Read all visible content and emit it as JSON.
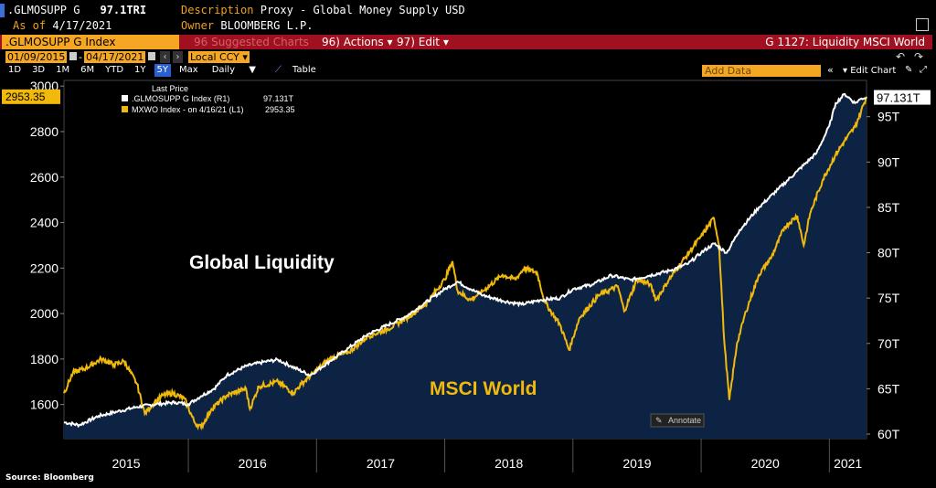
{
  "header": {
    "ticker": ".GLMOSUPP G",
    "last_value": "97.1TRI",
    "as_of_label": "As of",
    "as_of_date": "4/17/2021",
    "description_label": "Description",
    "description": "Proxy - Global Money Supply USD",
    "owner_label": "Owner",
    "owner": "BLOOMBERG L.P."
  },
  "toolbar": {
    "index_name": ".GLMOSUPP G Index",
    "suggested": "96 Suggested Charts",
    "actions": "96) Actions",
    "edit": "97) Edit",
    "chart_title": "G 1127: Liquidity MSCI World",
    "start_date": "01/09/2015",
    "end_date": "04/17/2021",
    "currency": "Local CCY",
    "periods": [
      "1D",
      "3D",
      "1M",
      "6M",
      "YTD",
      "1Y",
      "5Y",
      "Max"
    ],
    "selected_period": "5Y",
    "frequency": "Daily",
    "table_label": "Table",
    "add_data_placeholder": "Add Data",
    "edit_chart": "Edit Chart"
  },
  "chart_data": {
    "type": "line",
    "legend": {
      "header": "Last Price",
      "position": "top-left",
      "items": [
        {
          "label": ".GLMOSUPP G Index  (R1)",
          "value": "97.131T",
          "color": "#ffffff"
        },
        {
          "label": "MXWO Index - on 4/16/21  (L1)",
          "value": "2953.35",
          "color": "#f0b90b"
        }
      ]
    },
    "annotations": [
      "Global Liquidity",
      "MSCI World"
    ],
    "annotate_button": "Annotate",
    "x_labels": [
      "2015",
      "2016",
      "2017",
      "2018",
      "2019",
      "2020",
      "2021"
    ],
    "x_range": [
      2015.03,
      2021.29
    ],
    "y_left": {
      "ticks": [
        1600,
        1800,
        2000,
        2200,
        2400,
        2600,
        2800,
        3000
      ],
      "range": [
        1450,
        3025
      ],
      "last_label": "2953.35"
    },
    "y_right": {
      "ticks": [
        "60T",
        "65T",
        "70T",
        "75T",
        "80T",
        "85T",
        "90T",
        "95T"
      ],
      "tick_values": [
        60,
        65,
        70,
        75,
        80,
        85,
        90,
        95
      ],
      "range": [
        59.5,
        99
      ],
      "last_label": "97.131T"
    },
    "series": [
      {
        "name": ".GLMOSUPP G Index",
        "axis": "right",
        "color": "#ffffff",
        "fill": "#0d2344",
        "points": [
          [
            2015.03,
            61.3
          ],
          [
            2015.15,
            61.0
          ],
          [
            2015.3,
            62.0
          ],
          [
            2015.45,
            62.5
          ],
          [
            2015.6,
            63.0
          ],
          [
            2015.75,
            63.3
          ],
          [
            2015.9,
            63.5
          ],
          [
            2016.0,
            63.3
          ],
          [
            2016.1,
            64.2
          ],
          [
            2016.2,
            65.0
          ],
          [
            2016.3,
            66.5
          ],
          [
            2016.45,
            67.5
          ],
          [
            2016.6,
            68.0
          ],
          [
            2016.7,
            68.2
          ],
          [
            2016.8,
            67.5
          ],
          [
            2016.95,
            66.5
          ],
          [
            2017.1,
            68.0
          ],
          [
            2017.25,
            69.5
          ],
          [
            2017.4,
            71.0
          ],
          [
            2017.55,
            72.0
          ],
          [
            2017.7,
            73.0
          ],
          [
            2017.85,
            74.5
          ],
          [
            2018.0,
            76.0
          ],
          [
            2018.1,
            76.8
          ],
          [
            2018.2,
            76.0
          ],
          [
            2018.3,
            75.3
          ],
          [
            2018.45,
            74.7
          ],
          [
            2018.6,
            74.3
          ],
          [
            2018.75,
            74.8
          ],
          [
            2018.9,
            75.0
          ],
          [
            2019.0,
            76.0
          ],
          [
            2019.15,
            76.5
          ],
          [
            2019.3,
            77.5
          ],
          [
            2019.45,
            77.0
          ],
          [
            2019.6,
            77.5
          ],
          [
            2019.75,
            78.0
          ],
          [
            2019.9,
            78.8
          ],
          [
            2020.0,
            80.0
          ],
          [
            2020.1,
            81.0
          ],
          [
            2020.2,
            80.0
          ],
          [
            2020.3,
            82.5
          ],
          [
            2020.45,
            85.0
          ],
          [
            2020.6,
            87.0
          ],
          [
            2020.75,
            89.0
          ],
          [
            2020.9,
            91.0
          ],
          [
            2021.0,
            94.0
          ],
          [
            2021.05,
            96.5
          ],
          [
            2021.12,
            97.5
          ],
          [
            2021.2,
            96.5
          ],
          [
            2021.25,
            97.0
          ],
          [
            2021.29,
            97.131
          ]
        ]
      },
      {
        "name": "MXWO Index",
        "axis": "left",
        "color": "#f0b90b",
        "points": [
          [
            2015.03,
            1650
          ],
          [
            2015.1,
            1740
          ],
          [
            2015.2,
            1760
          ],
          [
            2015.32,
            1800
          ],
          [
            2015.42,
            1775
          ],
          [
            2015.5,
            1790
          ],
          [
            2015.6,
            1690
          ],
          [
            2015.66,
            1560
          ],
          [
            2015.72,
            1600
          ],
          [
            2015.8,
            1640
          ],
          [
            2015.88,
            1650
          ],
          [
            2015.97,
            1625
          ],
          [
            2016.05,
            1520
          ],
          [
            2016.1,
            1500
          ],
          [
            2016.18,
            1580
          ],
          [
            2016.3,
            1640
          ],
          [
            2016.45,
            1670
          ],
          [
            2016.48,
            1580
          ],
          [
            2016.55,
            1680
          ],
          [
            2016.7,
            1700
          ],
          [
            2016.82,
            1650
          ],
          [
            2016.88,
            1690
          ],
          [
            2016.98,
            1740
          ],
          [
            2017.1,
            1800
          ],
          [
            2017.25,
            1830
          ],
          [
            2017.4,
            1900
          ],
          [
            2017.55,
            1930
          ],
          [
            2017.7,
            1980
          ],
          [
            2017.85,
            2040
          ],
          [
            2018.0,
            2150
          ],
          [
            2018.06,
            2230
          ],
          [
            2018.1,
            2100
          ],
          [
            2018.2,
            2060
          ],
          [
            2018.3,
            2100
          ],
          [
            2018.45,
            2170
          ],
          [
            2018.55,
            2150
          ],
          [
            2018.62,
            2200
          ],
          [
            2018.72,
            2180
          ],
          [
            2018.78,
            2050
          ],
          [
            2018.9,
            1950
          ],
          [
            2018.97,
            1840
          ],
          [
            2019.05,
            1980
          ],
          [
            2019.2,
            2080
          ],
          [
            2019.35,
            2120
          ],
          [
            2019.4,
            2010
          ],
          [
            2019.5,
            2150
          ],
          [
            2019.6,
            2130
          ],
          [
            2019.65,
            2060
          ],
          [
            2019.75,
            2150
          ],
          [
            2019.88,
            2250
          ],
          [
            2020.0,
            2340
          ],
          [
            2020.1,
            2420
          ],
          [
            2020.14,
            2300
          ],
          [
            2020.18,
            1880
          ],
          [
            2020.22,
            1620
          ],
          [
            2020.28,
            1870
          ],
          [
            2020.35,
            2010
          ],
          [
            2020.45,
            2170
          ],
          [
            2020.55,
            2250
          ],
          [
            2020.65,
            2380
          ],
          [
            2020.75,
            2430
          ],
          [
            2020.8,
            2300
          ],
          [
            2020.85,
            2440
          ],
          [
            2020.95,
            2590
          ],
          [
            2021.05,
            2700
          ],
          [
            2021.12,
            2760
          ],
          [
            2021.2,
            2820
          ],
          [
            2021.29,
            2953.35
          ]
        ]
      }
    ]
  },
  "footer": {
    "source": "Source: Bloomberg"
  }
}
